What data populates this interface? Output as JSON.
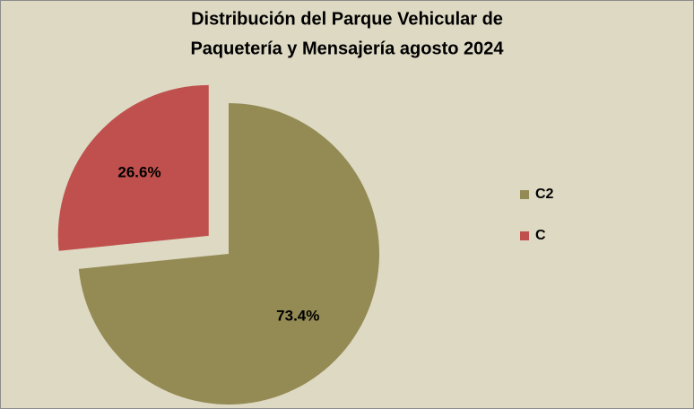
{
  "chart_data": {
    "type": "pie",
    "title": [
      "Distribución del Parque Vehicular de",
      "Paquetería y Mensajería agosto 2024"
    ],
    "categories": [
      "C2",
      "C"
    ],
    "values": [
      73.4,
      26.6
    ],
    "value_labels": [
      "73.4%",
      "26.6%"
    ],
    "colors": [
      "#948a54",
      "#c0504d"
    ],
    "exploded": [
      false,
      true
    ],
    "legend": "right"
  }
}
